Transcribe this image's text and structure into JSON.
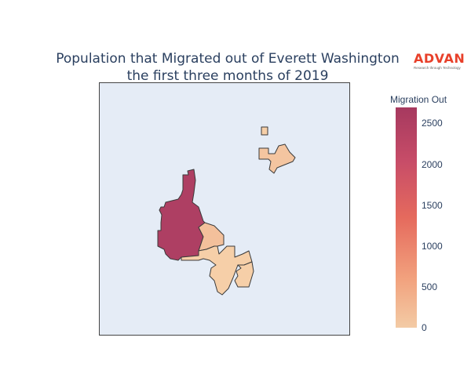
{
  "title": {
    "line1": "Population that Migrated out of Everett Washington",
    "line2": "the first three months of 2019"
  },
  "logo": {
    "word": "ADVAN",
    "tagline": "Research through Technology"
  },
  "legend": {
    "title": "Migration Out",
    "ticks": [
      "2500",
      "2000",
      "1500",
      "1000",
      "500",
      "0"
    ],
    "colors": [
      "#f3cba5",
      "#f2a27e",
      "#e56a5d",
      "#c84d68",
      "#a6395f"
    ]
  },
  "map": {
    "background": "#e5ecf6",
    "border_color": "#444444",
    "regions": [
      {
        "name": "west-large-tract",
        "value": 2600,
        "color": "#ae3f63"
      },
      {
        "name": "central-north-tract",
        "value": 180,
        "color": "#f3c09b"
      },
      {
        "name": "central-strip-tract",
        "value": 60,
        "color": "#f6cfa8"
      },
      {
        "name": "south-east-tract",
        "value": 40,
        "color": "#f6cfa8"
      },
      {
        "name": "north-small-square",
        "value": 30,
        "color": "#f6cfa8"
      },
      {
        "name": "north-east-tract",
        "value": 120,
        "color": "#f4c5a0"
      }
    ]
  }
}
